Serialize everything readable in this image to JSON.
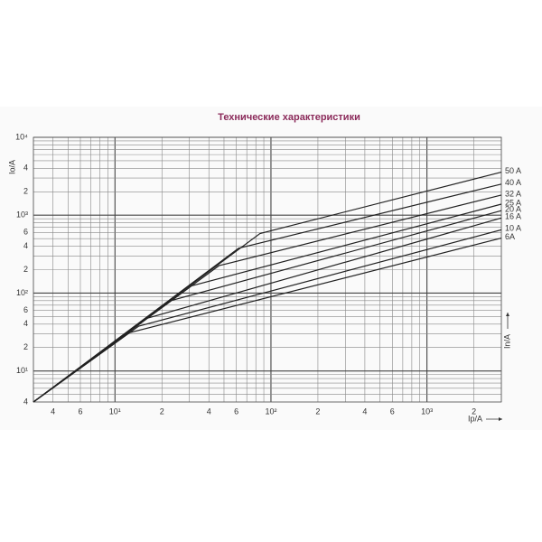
{
  "chart_data": {
    "type": "line",
    "title": "Технические характеристики",
    "y_label": "Io/A",
    "x_label": "Ip/A",
    "right_label": "In/A",
    "log_x": true,
    "log_y": true,
    "grid": true,
    "xlim": [
      3,
      3000
    ],
    "ylim": [
      4,
      10000
    ],
    "xticks": [
      4,
      6,
      {
        "value": 10,
        "label": "10¹"
      },
      2,
      4,
      6,
      {
        "value": 100,
        "label": "10²"
      },
      2,
      4,
      6,
      {
        "value": 1000,
        "label": "10³"
      },
      2
    ],
    "xtick_values": [
      4,
      6,
      10,
      20,
      40,
      60,
      100,
      200,
      400,
      600,
      1000,
      2000
    ],
    "yticks": [
      4,
      {
        "value": 10,
        "label": "10¹"
      },
      2,
      4,
      6,
      {
        "value": 100,
        "label": "10²"
      },
      2,
      4,
      6,
      {
        "value": 1000,
        "label": "10³"
      },
      2,
      4,
      {
        "value": 10000,
        "label": "10⁴"
      }
    ],
    "ytick_values": [
      4,
      10,
      20,
      40,
      60,
      100,
      200,
      400,
      600,
      1000,
      2000,
      4000,
      10000
    ],
    "xgrid": [
      3,
      4,
      5,
      6,
      7,
      8,
      9,
      10,
      20,
      30,
      40,
      50,
      60,
      70,
      80,
      90,
      100,
      200,
      300,
      400,
      500,
      600,
      700,
      800,
      900,
      1000,
      2000,
      3000
    ],
    "ygrid": [
      4,
      5,
      6,
      7,
      8,
      9,
      10,
      20,
      30,
      40,
      50,
      60,
      70,
      80,
      90,
      100,
      200,
      300,
      400,
      500,
      600,
      700,
      800,
      900,
      1000,
      2000,
      3000,
      4000,
      5000,
      6000,
      7000,
      8000,
      9000,
      10000
    ],
    "series": [
      {
        "name": "50 A",
        "color": "#222222",
        "x": [
          3,
          85,
          3000
        ],
        "values": [
          4,
          582,
          3570
        ]
      },
      {
        "name": "40 A",
        "color": "#222222",
        "x": [
          3,
          62,
          3000
        ],
        "values": [
          4,
          377,
          2510
        ]
      },
      {
        "name": "32 A",
        "color": "#222222",
        "x": [
          3,
          46.4,
          3000
        ],
        "values": [
          4,
          225,
          1815
        ]
      },
      {
        "name": "25 A",
        "color": "#222222",
        "x": [
          3,
          31,
          3000
        ],
        "values": [
          4,
          124,
          1385
        ]
      },
      {
        "name": "20 A",
        "color": "#222222",
        "x": [
          3,
          22.8,
          3000
        ],
        "values": [
          4,
          80,
          1145
        ]
      },
      {
        "name": "16 A",
        "color": "#222222",
        "x": [
          3,
          15.8,
          3000
        ],
        "values": [
          4,
          47,
          922
        ]
      },
      {
        "name": "10 A",
        "color": "#222222",
        "x": [
          3,
          14.2,
          3000
        ],
        "values": [
          4,
          37.7,
          650
        ]
      },
      {
        "name": "6A",
        "color": "#222222",
        "x": [
          3,
          12.4,
          3000
        ],
        "values": [
          4,
          31,
          508
        ]
      }
    ]
  }
}
